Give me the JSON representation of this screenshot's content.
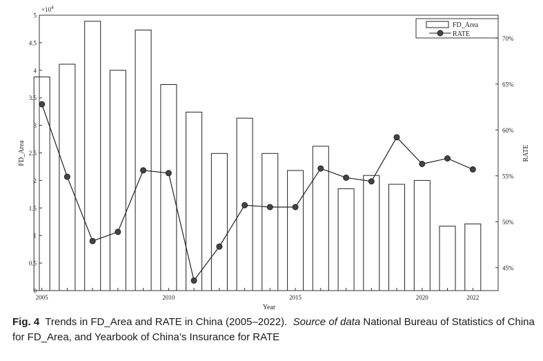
{
  "chart_data": {
    "type": "bar+line",
    "x": [
      2005,
      2006,
      2007,
      2008,
      2009,
      2010,
      2011,
      2012,
      2013,
      2014,
      2015,
      2016,
      2017,
      2018,
      2019,
      2020,
      2021,
      2022
    ],
    "series": [
      {
        "name": "FD_Area",
        "type": "bar",
        "axis": "left",
        "values": [
          3.88,
          4.11,
          4.89,
          4.0,
          4.73,
          3.74,
          3.24,
          2.49,
          3.13,
          2.49,
          2.18,
          2.62,
          1.85,
          2.09,
          1.93,
          2.0,
          1.17,
          1.21
        ]
      },
      {
        "name": "RATE",
        "type": "line",
        "axis": "right",
        "values": [
          62.8,
          54.9,
          47.9,
          48.9,
          55.6,
          55.3,
          43.6,
          47.3,
          51.8,
          51.6,
          51.6,
          55.8,
          54.8,
          54.4,
          59.2,
          56.3,
          56.9,
          55.7
        ]
      }
    ],
    "xlabel": "Year",
    "ylabel_left": "FD_Area",
    "ylabel_right": "RATE",
    "y_left_ticks": [
      "0",
      "0.5",
      "1",
      "1.5",
      "2",
      "2.5",
      "3",
      "3.5",
      "4",
      "4.5",
      "5"
    ],
    "y_left_multiplier": "×10",
    "y_left_multiplier_exp": "4",
    "y_left_range": [
      0,
      50000
    ],
    "y_right_ticks": [
      "45%",
      "50%",
      "55%",
      "60%",
      "65%",
      "70%"
    ],
    "y_right_range": [
      42.5,
      72.5
    ],
    "x_ticks": [
      "2005",
      "2010",
      "2015",
      "2020",
      "2022"
    ],
    "legend": [
      "FD_Area",
      "RATE"
    ],
    "legend_position": "top-right"
  },
  "caption": {
    "label": "Fig. 4",
    "title": "Trends in FD_Area and RATE in China (2005–2022).",
    "source_label": "Source of data",
    "source_text": "National Bureau of Statistics of China for FD_Area, and Yearbook of China’s Insurance for RATE"
  }
}
